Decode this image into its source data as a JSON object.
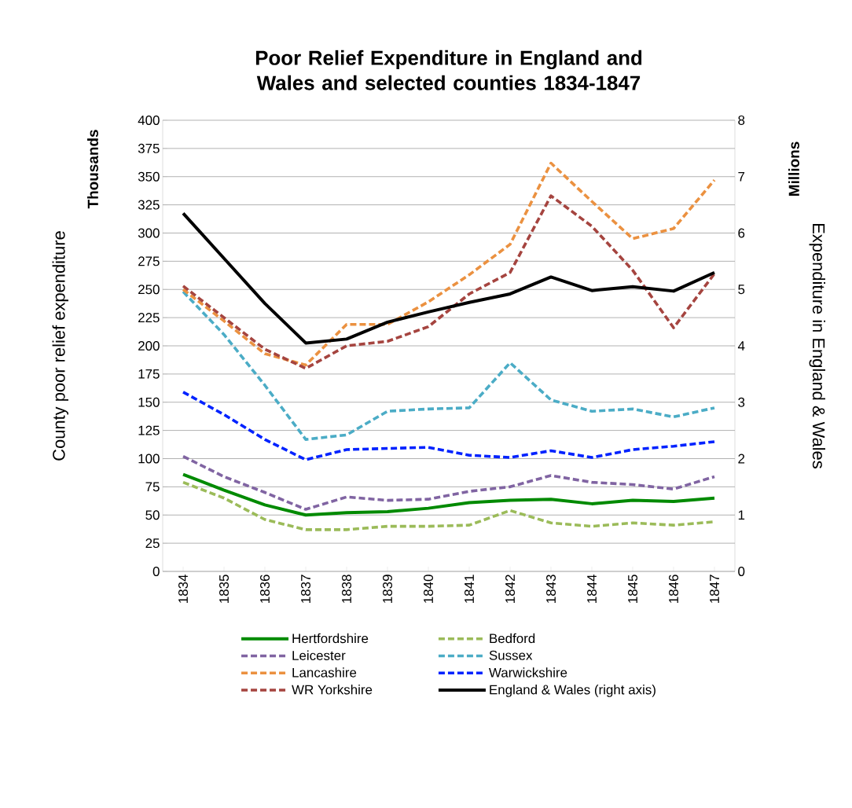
{
  "chart_data": {
    "type": "line",
    "title": "Poor Relief Expenditure in England and Wales and selected counties 1834-1847",
    "ylabel": "County poor relief expenditure",
    "y2label": "Expenditure in England & Wales",
    "annotations": [
      "Thousands",
      "Millions"
    ],
    "categories": [
      "1834",
      "1835",
      "1836",
      "1837",
      "1838",
      "1839",
      "1840",
      "1841",
      "1842",
      "1843",
      "1844",
      "1845",
      "1846",
      "1847"
    ],
    "series": [
      {
        "name": "Hertfordshire",
        "color": "#008a00",
        "line_style": "solid",
        "values": [
          86,
          72,
          59,
          50,
          52,
          53,
          56,
          61,
          63,
          64,
          60,
          63,
          62,
          65
        ]
      },
      {
        "name": "Bedford",
        "color": "#9bbb59",
        "line_style": "dashed",
        "values": [
          79,
          65,
          46,
          37,
          37,
          40,
          40,
          41,
          54,
          43,
          40,
          43,
          41,
          44
        ]
      },
      {
        "name": "Leicester",
        "color": "#8064a2",
        "line_style": "dashed",
        "values": [
          102,
          84,
          70,
          55,
          66,
          63,
          64,
          71,
          75,
          85,
          79,
          77,
          73,
          84
        ]
      },
      {
        "name": "Sussex",
        "color": "#4bacc6",
        "line_style": "dashed",
        "values": [
          248,
          210,
          165,
          117,
          121,
          142,
          144,
          145,
          185,
          152,
          142,
          144,
          137,
          145
        ]
      },
      {
        "name": "Lancashire",
        "color": "#eb9140",
        "line_style": "dashed",
        "values": [
          250,
          222,
          193,
          183,
          219,
          219,
          239,
          263,
          290,
          362,
          328,
          295,
          304,
          347
        ]
      },
      {
        "name": "Warwickshire",
        "color": "#0022ff",
        "line_style": "dashed",
        "values": [
          159,
          139,
          117,
          99,
          108,
          109,
          110,
          103,
          101,
          107,
          101,
          108,
          111,
          115
        ]
      },
      {
        "name": "WR Yorkshire",
        "color": "#a5443f",
        "line_style": "dashed",
        "values": [
          253,
          225,
          197,
          180,
          200,
          204,
          217,
          246,
          265,
          333,
          306,
          267,
          216,
          264
        ]
      },
      {
        "name": "England & Wales (right axis)",
        "color": "#000000",
        "line_style": "solid",
        "axis": "y2",
        "values": [
          6.35,
          5.55,
          4.75,
          4.05,
          4.12,
          4.42,
          4.6,
          4.77,
          4.92,
          5.22,
          4.98,
          5.05,
          4.97,
          5.3
        ]
      }
    ],
    "ylim": [
      0,
      400
    ],
    "yticks": [
      0,
      25,
      50,
      75,
      100,
      125,
      150,
      175,
      200,
      225,
      250,
      275,
      300,
      325,
      350,
      375,
      400
    ],
    "y2lim": [
      0,
      8
    ],
    "y2ticks": [
      0,
      1,
      2,
      3,
      4,
      5,
      6,
      7,
      8
    ],
    "grid": "y",
    "legend": "bottom",
    "marker": "none"
  }
}
